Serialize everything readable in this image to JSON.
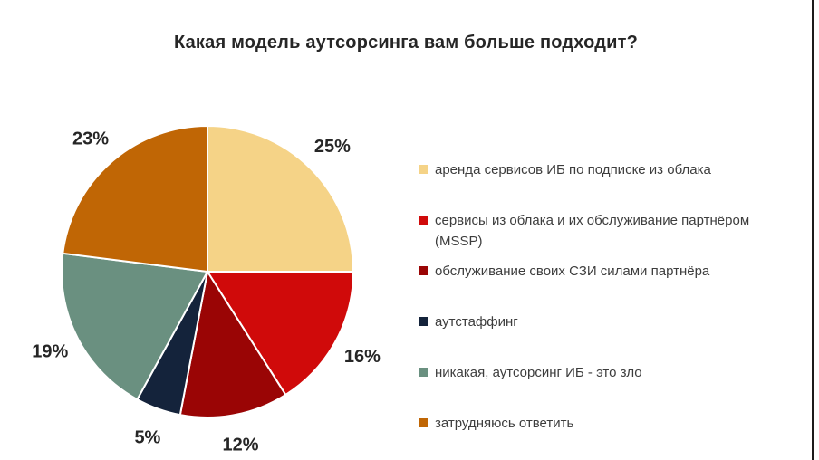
{
  "title": "Какая модель аутсорсинга вам больше подходит?",
  "chart_data": {
    "type": "pie",
    "title": "Какая модель аутсорсинга вам больше подходит?",
    "direction": "clockwise",
    "start_angle_deg": 0,
    "legend_position": "right",
    "data_labels": "percent-outside",
    "slices": [
      {
        "label": "аренда сервисов ИБ по подписке из облака",
        "value": 25,
        "display": "25%",
        "color": "#F5D387"
      },
      {
        "label": "сервисы из облака и их обслуживание партнёром (MSSP)",
        "value": 16,
        "display": "16%",
        "color": "#D00A0A"
      },
      {
        "label": "обслуживание своих СЗИ силами партнёра",
        "value": 12,
        "display": "12%",
        "color": "#9A0505"
      },
      {
        "label": "аутстаффинг",
        "value": 5,
        "display": "5%",
        "color": "#14233B"
      },
      {
        "label": "никакая, аутсорсинг ИБ - это зло",
        "value": 19,
        "display": "19%",
        "color": "#6A9080"
      },
      {
        "label": "затрудняюсь ответить",
        "value": 23,
        "display": "23%",
        "color": "#C06605"
      }
    ]
  }
}
